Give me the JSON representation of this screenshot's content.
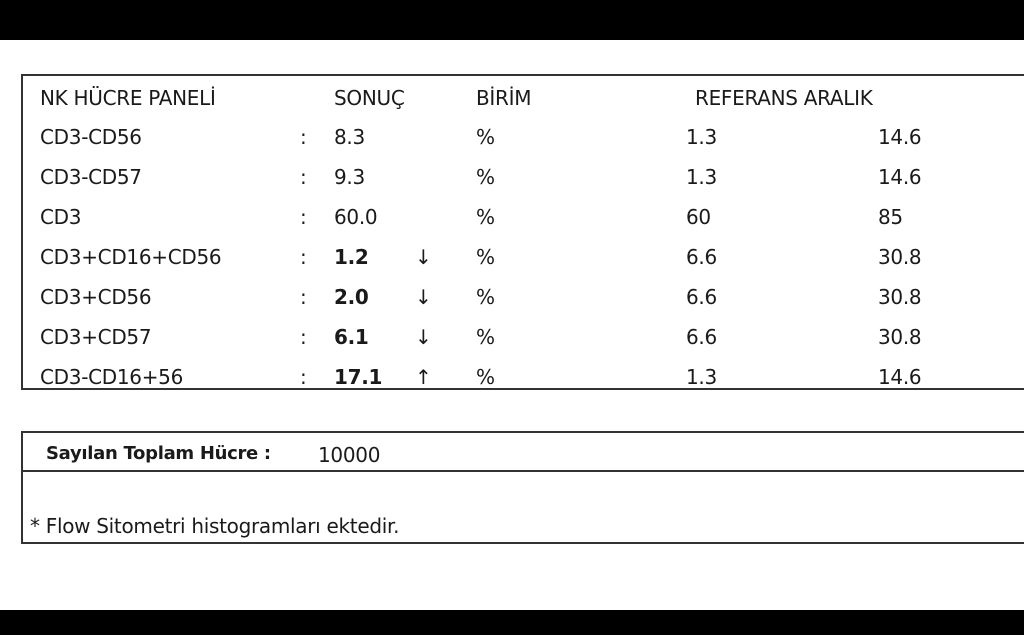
{
  "panel": {
    "headers": {
      "name": "NK HÜCRE PANELİ",
      "result": "SONUÇ",
      "unit": "BİRİM",
      "reference": "REFERANS ARALIK"
    },
    "rows": [
      {
        "name": "CD3-CD56",
        "sep": ":",
        "value": "8.3",
        "flag": "",
        "unit": "%",
        "ref_low": "1.3",
        "ref_high": "14.6",
        "bold": false
      },
      {
        "name": "CD3-CD57",
        "sep": ":",
        "value": "9.3",
        "flag": "",
        "unit": "%",
        "ref_low": "1.3",
        "ref_high": "14.6",
        "bold": false
      },
      {
        "name": "CD3",
        "sep": ":",
        "value": "60.0",
        "flag": "",
        "unit": "%",
        "ref_low": "60",
        "ref_high": "85",
        "bold": false
      },
      {
        "name": "CD3+CD16+CD56",
        "sep": ":",
        "value": "1.2",
        "flag": "↓",
        "unit": "%",
        "ref_low": "6.6",
        "ref_high": "30.8",
        "bold": true
      },
      {
        "name": "CD3+CD56",
        "sep": ":",
        "value": "2.0",
        "flag": "↓",
        "unit": "%",
        "ref_low": "6.6",
        "ref_high": "30.8",
        "bold": true
      },
      {
        "name": "CD3+CD57",
        "sep": ":",
        "value": "6.1",
        "flag": "↓",
        "unit": "%",
        "ref_low": "6.6",
        "ref_high": "30.8",
        "bold": true
      },
      {
        "name": "CD3-CD16+56",
        "sep": ":",
        "value": "17.1",
        "flag": "↑",
        "unit": "%",
        "ref_low": "1.3",
        "ref_high": "14.6",
        "bold": true
      }
    ]
  },
  "summary": {
    "total_label": "Sayılan Toplam Hücre :",
    "total_value": "10000",
    "footnote": "* Flow Sitometri histogramları ektedir."
  }
}
